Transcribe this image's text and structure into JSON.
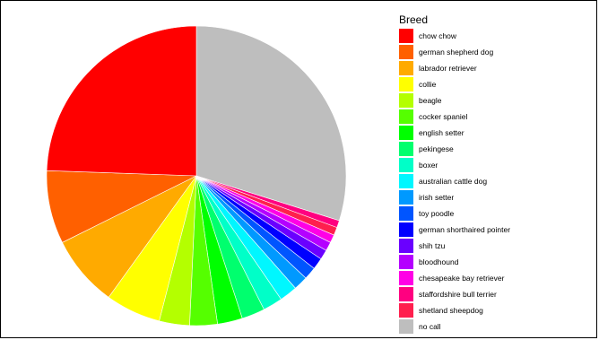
{
  "chart_data": {
    "type": "pie",
    "title": "",
    "legend_title": "Breed",
    "legend_position": "right",
    "start_angle_deg": 0,
    "direction": "clockwise",
    "slices": [
      {
        "label": "no call",
        "value": 31.0,
        "color": "#BEBEBE"
      },
      {
        "label": "staffordshire bull terrier",
        "value": 0.8,
        "color": "#FF0080"
      },
      {
        "label": "shetland sheepdog",
        "value": 0.9,
        "color": "#FF1F4E"
      },
      {
        "label": "chesapeake bay retriever",
        "value": 0.9,
        "color": "#FF00E6"
      },
      {
        "label": "bloodhound",
        "value": 1.0,
        "color": "#B400FF"
      },
      {
        "label": "shih tzu",
        "value": 1.1,
        "color": "#6A00FF"
      },
      {
        "label": "german shorthaired pointer",
        "value": 1.3,
        "color": "#0000FF"
      },
      {
        "label": "toy poodle",
        "value": 1.4,
        "color": "#0055FF"
      },
      {
        "label": "irish setter",
        "value": 1.6,
        "color": "#0099FF"
      },
      {
        "label": "australian cattle dog",
        "value": 2.0,
        "color": "#00F7FF"
      },
      {
        "label": "boxer",
        "value": 2.2,
        "color": "#00FFC8"
      },
      {
        "label": "pekingese",
        "value": 2.6,
        "color": "#00FF6E"
      },
      {
        "label": "english setter",
        "value": 2.8,
        "color": "#00FF00"
      },
      {
        "label": "cocker spaniel",
        "value": 3.1,
        "color": "#55FF00"
      },
      {
        "label": "beagle",
        "value": 3.4,
        "color": "#B4FF00"
      },
      {
        "label": "collie",
        "value": 6.2,
        "color": "#FFFF00"
      },
      {
        "label": "labrador retriever",
        "value": 8.0,
        "color": "#FFAA00"
      },
      {
        "label": "german shepherd dog",
        "value": 8.2,
        "color": "#FF6000"
      },
      {
        "label": "chow chow",
        "value": 25.4,
        "color": "#FF0000"
      }
    ],
    "legend": [
      {
        "label": "chow chow",
        "color": "#FF0000"
      },
      {
        "label": "german shepherd dog",
        "color": "#FF6000"
      },
      {
        "label": "labrador retriever",
        "color": "#FFAA00"
      },
      {
        "label": "collie",
        "color": "#FFFF00"
      },
      {
        "label": "beagle",
        "color": "#B4FF00"
      },
      {
        "label": "cocker spaniel",
        "color": "#55FF00"
      },
      {
        "label": "english setter",
        "color": "#00FF00"
      },
      {
        "label": "pekingese",
        "color": "#00FF6E"
      },
      {
        "label": "boxer",
        "color": "#00FFC8"
      },
      {
        "label": "australian cattle dog",
        "color": "#00F7FF"
      },
      {
        "label": "irish setter",
        "color": "#0099FF"
      },
      {
        "label": "toy poodle",
        "color": "#0055FF"
      },
      {
        "label": "german shorthaired pointer",
        "color": "#0000FF"
      },
      {
        "label": "shih tzu",
        "color": "#6A00FF"
      },
      {
        "label": "bloodhound",
        "color": "#B400FF"
      },
      {
        "label": "chesapeake bay retriever",
        "color": "#FF00E6"
      },
      {
        "label": "staffordshire bull terrier",
        "color": "#FF0080"
      },
      {
        "label": "shetland sheepdog",
        "color": "#FF1F4E"
      },
      {
        "label": "no call",
        "color": "#BEBEBE"
      }
    ]
  }
}
